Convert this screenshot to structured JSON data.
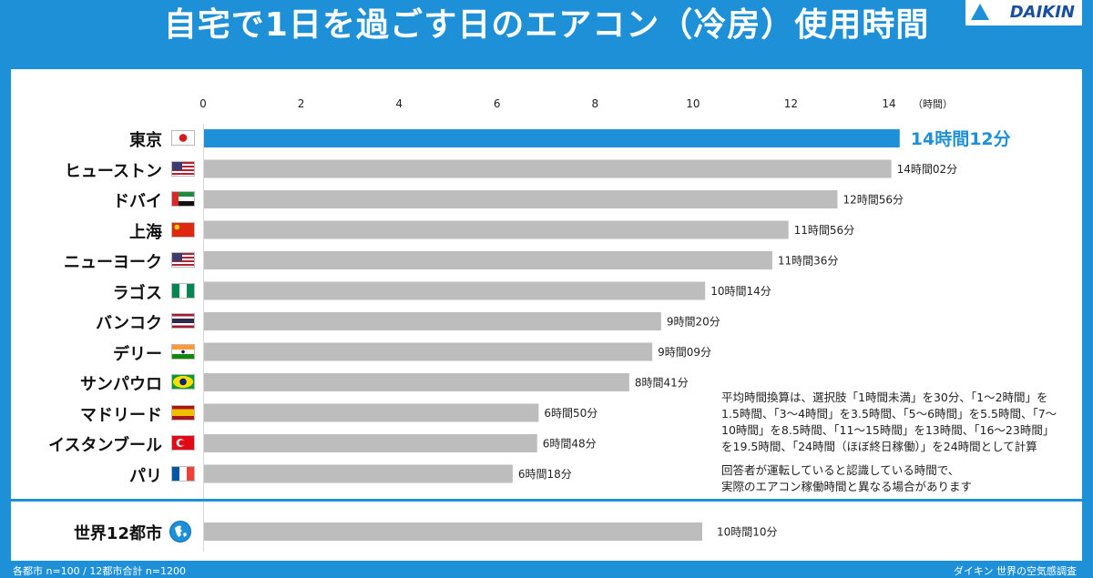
{
  "title": "自宅で1日を過ごす日のエアコン（冷房）使用時間",
  "logo": "DAIKIN",
  "colors": {
    "brand": "#1e90d8",
    "highlight_bar": "#1e90d8",
    "bar": "#bdbdbd",
    "highlight_label": "#1e90d8"
  },
  "chart_data": {
    "type": "bar",
    "orientation": "horizontal",
    "x_unit_label": "（時間）",
    "xlim": [
      0,
      14
    ],
    "x_ticks": [
      0,
      2,
      4,
      6,
      8,
      10,
      12,
      14
    ],
    "categories": [
      "東京",
      "ヒューストン",
      "ドバイ",
      "上海",
      "ニューヨーク",
      "ラゴス",
      "バンコク",
      "デリー",
      "サンパウロ",
      "マドリード",
      "イスタンブール",
      "パリ"
    ],
    "flags": [
      "japan-flag-icon",
      "usa-flag-icon",
      "uae-flag-icon",
      "china-flag-icon",
      "usa-flag-icon",
      "nigeria-flag-icon",
      "thailand-flag-icon",
      "india-flag-icon",
      "brazil-flag-icon",
      "spain-flag-icon",
      "turkey-flag-icon",
      "france-flag-icon"
    ],
    "values": [
      14.2,
      14.03,
      12.93,
      11.93,
      11.6,
      10.23,
      9.33,
      9.15,
      8.68,
      6.83,
      6.8,
      6.3
    ],
    "data_labels": [
      "14時間12分",
      "14時間02分",
      "12時間56分",
      "11時間56分",
      "11時間36分",
      "10時間14分",
      "9時間20分",
      "9時間09分",
      "8時間41分",
      "6時間50分",
      "6時間48分",
      "6時間18分"
    ],
    "highlight_index": 0,
    "summary": {
      "category": "世界12都市",
      "icon": "globe-icon",
      "value": 10.17,
      "data_label": "10時間10分"
    }
  },
  "notes": [
    "平均時間換算は、選択肢「1時間未満」を30分、「1～2時間」を",
    "1.5時間、「3～4時間」を3.5時間、「5～6時間」を5.5時間、「7～",
    "10時間」を8.5時間、「11～15時間」を13時間、「16～23時間」",
    "を19.5時間、「24時間（ほぼ終日稼働）」を24時間として計算",
    "回答者が運転していると認識している時間で、",
    "実際のエアコン稼働時間と異なる場合があります"
  ],
  "footer": {
    "left": "各都市 n=100 / 12都市合計 n=1200",
    "right": "ダイキン 世界の空気感調査"
  }
}
